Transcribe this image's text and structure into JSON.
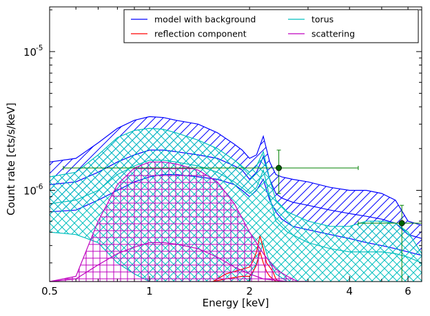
{
  "chart_data": {
    "type": "line",
    "xlabel": "Energy [keV]",
    "ylabel": "Count rate [cts/s/keV]",
    "x_scale": "log",
    "y_scale": "log",
    "xlim": [
      0.5,
      6.6
    ],
    "ylim": [
      2.2e-07,
      2.1e-05
    ],
    "xticks": [
      {
        "value": 0.5,
        "label": "0.5"
      },
      {
        "value": 1,
        "label": "1"
      },
      {
        "value": 2,
        "label": "2"
      },
      {
        "value": 4,
        "label": "4"
      },
      {
        "value": 6,
        "label": "6"
      }
    ],
    "yticks": [
      {
        "value": 1e-06,
        "base": "10",
        "exp": "-6"
      },
      {
        "value": 1e-05,
        "base": "10",
        "exp": "-5"
      }
    ],
    "grid": false,
    "legend_position": "top-right",
    "legend_columns": 2,
    "series": [
      {
        "name": "model with background",
        "color": "#0000ff",
        "hatch": "diagonal",
        "x": [
          0.5,
          0.6,
          0.7,
          0.8,
          0.9,
          1.0,
          1.1,
          1.2,
          1.4,
          1.6,
          1.8,
          1.9,
          2.0,
          2.1,
          2.2,
          2.3,
          2.4,
          2.5,
          2.7,
          3.0,
          3.5,
          4.0,
          4.5,
          5.0,
          5.5,
          6.0,
          6.6
        ],
        "upper": [
          1.6e-06,
          1.7e-06,
          2.2e-06,
          2.8e-06,
          3.2e-06,
          3.4e-06,
          3.35e-06,
          3.2e-06,
          3e-06,
          2.6e-06,
          2.15e-06,
          1.95e-06,
          1.7e-06,
          1.8e-06,
          2.45e-06,
          1.6e-06,
          1.3e-06,
          1.25e-06,
          1.2e-06,
          1.15e-06,
          1.05e-06,
          1e-06,
          1e-06,
          9.5e-07,
          8.5e-07,
          6e-07,
          5.6e-07
        ],
        "lower": [
          7e-07,
          7.2e-07,
          8.5e-07,
          1e-06,
          1.15e-06,
          1.25e-06,
          1.3e-06,
          1.3e-06,
          1.25e-06,
          1.2e-06,
          1.1e-06,
          1e-06,
          9e-07,
          1e-06,
          1.2e-06,
          8.5e-07,
          7e-07,
          6.2e-07,
          5.5e-07,
          5.2e-07,
          4.8e-07,
          4.5e-07,
          4.2e-07,
          4e-07,
          3.8e-07,
          3.6e-07,
          3.4e-07
        ],
        "mid": [
          1.1e-06,
          1.15e-06,
          1.35e-06,
          1.6e-06,
          1.8e-06,
          1.95e-06,
          1.95e-06,
          1.9e-06,
          1.8e-06,
          1.7e-06,
          1.5e-06,
          1.4e-06,
          1.2e-06,
          1.35e-06,
          1.75e-06,
          1.2e-06,
          9.5e-07,
          8.8e-07,
          8.2e-07,
          7.8e-07,
          7.2e-07,
          6.8e-07,
          6.5e-07,
          6.2e-07,
          5.8e-07,
          4.8e-07,
          4.5e-07
        ]
      },
      {
        "name": "torus",
        "color": "#00bfbf",
        "hatch": "cross-diagonal",
        "x": [
          0.5,
          0.6,
          0.7,
          0.8,
          0.9,
          1.0,
          1.1,
          1.2,
          1.4,
          1.6,
          1.8,
          2.0,
          2.1,
          2.2,
          2.3,
          2.4,
          2.6,
          3.0,
          3.5,
          4.0,
          4.5,
          5.0,
          5.5,
          6.0,
          6.6
        ],
        "upper": [
          1.25e-06,
          1.35e-06,
          1.8e-06,
          2.4e-06,
          2.7e-06,
          2.8e-06,
          2.75e-06,
          2.6e-06,
          2.3e-06,
          2e-06,
          1.65e-06,
          1.35e-06,
          1.5e-06,
          1.9e-06,
          1.2e-06,
          8.5e-07,
          7e-07,
          6e-07,
          5.5e-07,
          5.5e-07,
          6e-07,
          6e-07,
          5.8e-07,
          5e-07,
          3.5e-07
        ],
        "lower": [
          5e-07,
          4.8e-07,
          4.2e-07,
          3e-07,
          2.5e-07,
          2.2e-07,
          2.2e-07,
          2.2e-07,
          2.2e-07,
          2.2e-07,
          2.2e-07,
          2.2e-07,
          3e-07,
          4.2e-07,
          3e-07,
          2.5e-07,
          2.2e-07,
          2.2e-07,
          2.2e-07,
          2.2e-07,
          2.2e-07,
          2.2e-07,
          2.2e-07,
          2.2e-07,
          2.2e-07
        ],
        "mid": [
          8e-07,
          8.5e-07,
          1e-06,
          1.3e-06,
          1.5e-06,
          1.65e-06,
          1.65e-06,
          1.6e-06,
          1.5e-06,
          1.35e-06,
          1.15e-06,
          9.5e-07,
          1.05e-06,
          1.4e-06,
          9e-07,
          6e-07,
          5e-07,
          4.2e-07,
          3.8e-07,
          3.6e-07,
          3.6e-07,
          3.6e-07,
          3.5e-07,
          3.3e-07,
          3e-07
        ]
      },
      {
        "name": "reflection component",
        "color": "#ff0000",
        "hatch": "none",
        "x": [
          1.55,
          1.7,
          1.9,
          2.0,
          2.05,
          2.1,
          2.15,
          2.2,
          2.25,
          2.3,
          2.35,
          2.4,
          2.45
        ],
        "upper": [
          2.2e-07,
          2.5e-07,
          2.7e-07,
          2.8e-07,
          3.1e-07,
          3.6e-07,
          4.7e-07,
          3.8e-07,
          3e-07,
          2.8e-07,
          2.6e-07,
          2.3e-07,
          2.2e-07
        ],
        "lower": [
          2.2e-07,
          2.2e-07,
          2.2e-07,
          2.2e-07,
          2.2e-07,
          2.2e-07,
          2.2e-07,
          2.2e-07,
          2.2e-07,
          2.2e-07,
          2.2e-07,
          2.2e-07,
          2.2e-07
        ],
        "mid": [
          2.2e-07,
          2.3e-07,
          2.4e-07,
          2.4e-07,
          2.6e-07,
          2.9e-07,
          3.6e-07,
          3e-07,
          2.6e-07,
          2.4e-07,
          2.3e-07,
          2.2e-07,
          2.2e-07
        ]
      },
      {
        "name": "scattering",
        "color": "#bf00bf",
        "hatch": "grid",
        "x": [
          0.5,
          0.6,
          0.7,
          0.8,
          0.9,
          1.0,
          1.1,
          1.2,
          1.4,
          1.6,
          1.8,
          2.0,
          2.2,
          2.4,
          2.6,
          2.8,
          3.0
        ],
        "upper": [
          2.2e-07,
          2.4e-07,
          6e-07,
          1.1e-06,
          1.45e-06,
          1.6e-06,
          1.6e-06,
          1.55e-06,
          1.4e-06,
          1.15e-06,
          8e-07,
          5e-07,
          3.5e-07,
          2.7e-07,
          2.4e-07,
          2.2e-07,
          2.2e-07
        ],
        "lower": [
          2.2e-07,
          2.2e-07,
          2.2e-07,
          2.2e-07,
          2.2e-07,
          2.2e-07,
          2.2e-07,
          2.2e-07,
          2.2e-07,
          2.2e-07,
          2.2e-07,
          2.2e-07,
          2.2e-07,
          2.2e-07,
          2.2e-07,
          2.2e-07,
          2.2e-07
        ],
        "mid": [
          2.2e-07,
          2.3e-07,
          2.9e-07,
          3.5e-07,
          3.9e-07,
          4.2e-07,
          4.2e-07,
          4.1e-07,
          3.8e-07,
          3.3e-07,
          2.8e-07,
          2.5e-07,
          2.3e-07,
          2.25e-07,
          2.2e-07,
          2.2e-07,
          2.2e-07
        ]
      }
    ],
    "data_points": {
      "color": "#008000",
      "points": [
        {
          "x": 2.45,
          "y": 1.45e-06,
          "xerr": [
            0.55,
            4.25
          ],
          "yerr": [
            9.5e-07,
            1.95e-06
          ]
        },
        {
          "x": 5.75,
          "y": 5.8e-07,
          "xerr": [
            4.25,
            6.6
          ],
          "yerr": [
            2.2e-07,
            7.8e-07
          ]
        }
      ]
    }
  }
}
